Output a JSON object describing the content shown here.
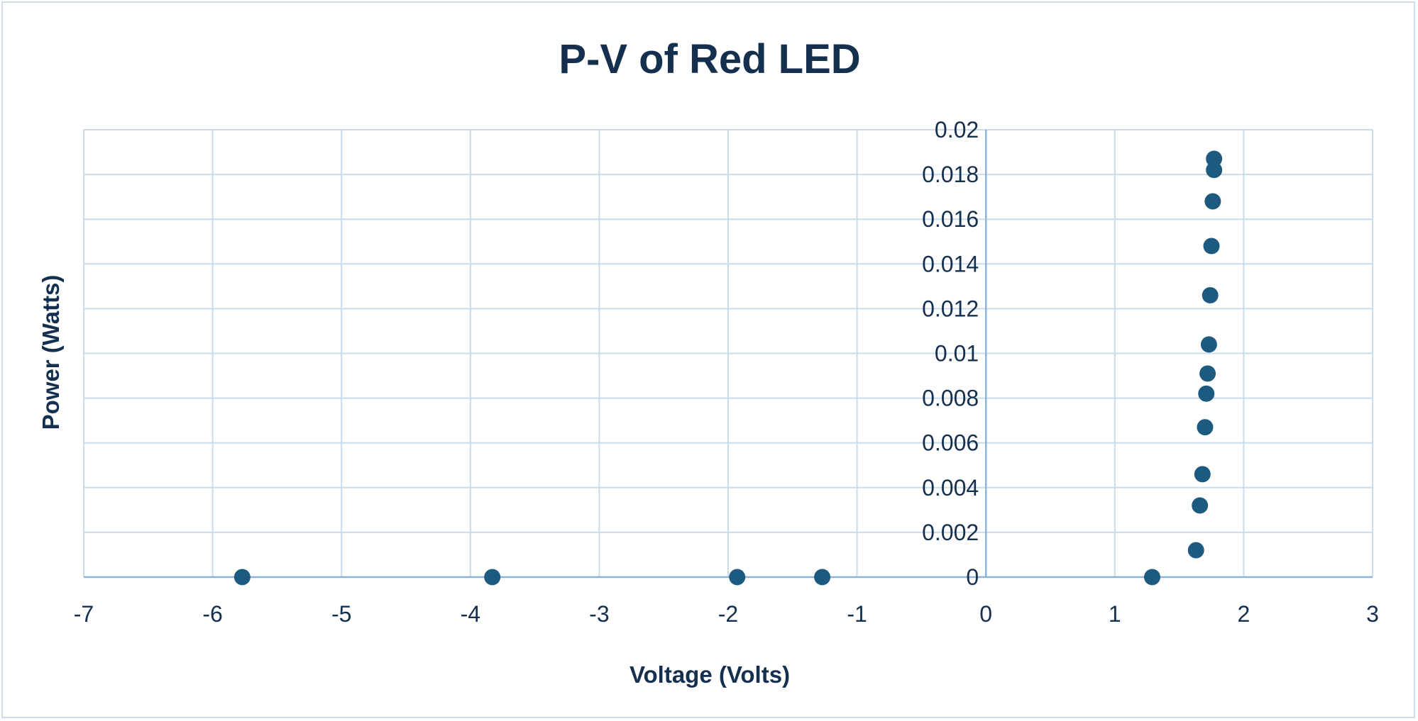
{
  "chart_data": {
    "type": "scatter",
    "title": "P-V of Red LED",
    "xlabel": "Voltage (Volts)",
    "ylabel": "Power (Watts)",
    "xlim": [
      -7,
      3
    ],
    "ylim": [
      0,
      0.02
    ],
    "x_ticks": [
      "-7",
      "-6",
      "-5",
      "-4",
      "-3",
      "-2",
      "-1",
      "0",
      "1",
      "2",
      "3"
    ],
    "y_ticks": [
      "0",
      "0.002",
      "0.004",
      "0.006",
      "0.008",
      "0.01",
      "0.012",
      "0.014",
      "0.016",
      "0.018",
      "0.02"
    ],
    "grid": true,
    "legend": "none",
    "series": [
      {
        "color": "#1d5a80",
        "points": [
          {
            "x": -5.77,
            "y": 0
          },
          {
            "x": -3.83,
            "y": 0
          },
          {
            "x": -1.93,
            "y": 0
          },
          {
            "x": -1.27,
            "y": 0
          },
          {
            "x": 1.29,
            "y": 0
          },
          {
            "x": 1.63,
            "y": 0.0012
          },
          {
            "x": 1.66,
            "y": 0.0032
          },
          {
            "x": 1.68,
            "y": 0.0046
          },
          {
            "x": 1.7,
            "y": 0.0067
          },
          {
            "x": 1.71,
            "y": 0.0082
          },
          {
            "x": 1.72,
            "y": 0.0091
          },
          {
            "x": 1.73,
            "y": 0.0104
          },
          {
            "x": 1.74,
            "y": 0.0126
          },
          {
            "x": 1.75,
            "y": 0.0148
          },
          {
            "x": 1.76,
            "y": 0.0168
          },
          {
            "x": 1.77,
            "y": 0.0182
          },
          {
            "x": 1.77,
            "y": 0.0187
          }
        ]
      }
    ]
  }
}
